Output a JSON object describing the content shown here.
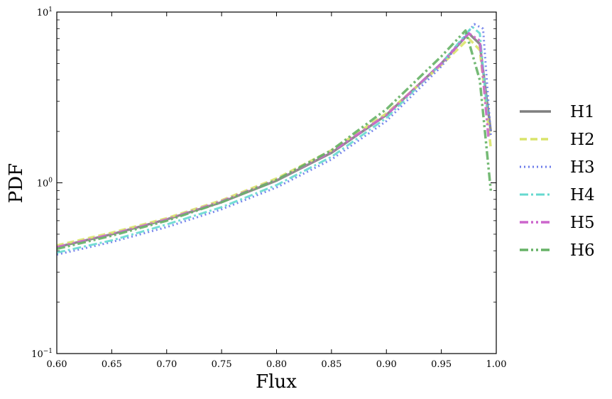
{
  "chart_data": {
    "type": "line",
    "xlabel": "Flux",
    "ylabel": "PDF",
    "xlim": [
      0.6,
      1.0
    ],
    "ylim": [
      0.1,
      10
    ],
    "yscale": "log",
    "grid": false,
    "legend_position": "right, outside plot",
    "x_ticks": [
      "0.60",
      "0.65",
      "0.70",
      "0.75",
      "0.80",
      "0.85",
      "0.90",
      "0.95",
      "1.00"
    ],
    "y_ticks": [
      {
        "base": "10",
        "exp": "−1",
        "value": 0.1
      },
      {
        "base": "10",
        "exp": "0",
        "value": 1
      },
      {
        "base": "10",
        "exp": "1",
        "value": 10
      }
    ],
    "series": [
      {
        "name": "H1",
        "color": "#7f7f7f",
        "dash": "solid",
        "width": 3.5,
        "x": [
          0.6,
          0.65,
          0.7,
          0.75,
          0.8,
          0.85,
          0.9,
          0.95,
          0.975,
          0.985,
          0.995
        ],
        "y": [
          0.42,
          0.5,
          0.61,
          0.77,
          1.03,
          1.5,
          2.5,
          5.0,
          7.5,
          6.5,
          2.0
        ]
      },
      {
        "name": "H2",
        "color": "#d9e46a",
        "dash": "dashed",
        "width": 3.5,
        "x": [
          0.6,
          0.65,
          0.7,
          0.75,
          0.8,
          0.85,
          0.9,
          0.95,
          0.975,
          0.985,
          0.995
        ],
        "y": [
          0.43,
          0.51,
          0.62,
          0.79,
          1.06,
          1.55,
          2.55,
          4.9,
          7.0,
          6.0,
          1.6
        ]
      },
      {
        "name": "H3",
        "color": "#6b7bea",
        "dash": "dotted",
        "width": 3,
        "x": [
          0.6,
          0.65,
          0.7,
          0.75,
          0.8,
          0.85,
          0.9,
          0.95,
          0.98,
          0.988,
          0.995
        ],
        "y": [
          0.38,
          0.45,
          0.55,
          0.7,
          0.94,
          1.37,
          2.3,
          4.8,
          8.5,
          8.0,
          1.9
        ]
      },
      {
        "name": "H4",
        "color": "#66d9cf",
        "dash": "dashdot",
        "width": 3,
        "x": [
          0.6,
          0.65,
          0.7,
          0.75,
          0.8,
          0.85,
          0.9,
          0.95,
          0.978,
          0.985,
          0.992
        ],
        "y": [
          0.39,
          0.46,
          0.57,
          0.72,
          0.97,
          1.42,
          2.4,
          5.0,
          8.2,
          7.5,
          2.5
        ]
      },
      {
        "name": "H5",
        "color": "#cc66cc",
        "dash": "dashdotdot",
        "width": 3.5,
        "x": [
          0.6,
          0.65,
          0.7,
          0.75,
          0.8,
          0.85,
          0.9,
          0.95,
          0.975,
          0.985,
          0.993
        ],
        "y": [
          0.42,
          0.5,
          0.61,
          0.78,
          1.04,
          1.52,
          2.5,
          5.0,
          7.5,
          6.8,
          1.8
        ]
      },
      {
        "name": "H6",
        "color": "#66b266",
        "dash": "dashdotdot",
        "width": 3.5,
        "x": [
          0.6,
          0.65,
          0.7,
          0.75,
          0.8,
          0.85,
          0.9,
          0.95,
          0.972,
          0.985,
          0.995
        ],
        "y": [
          0.41,
          0.49,
          0.6,
          0.77,
          1.04,
          1.55,
          2.7,
          5.5,
          7.8,
          4.0,
          0.9
        ]
      }
    ]
  }
}
